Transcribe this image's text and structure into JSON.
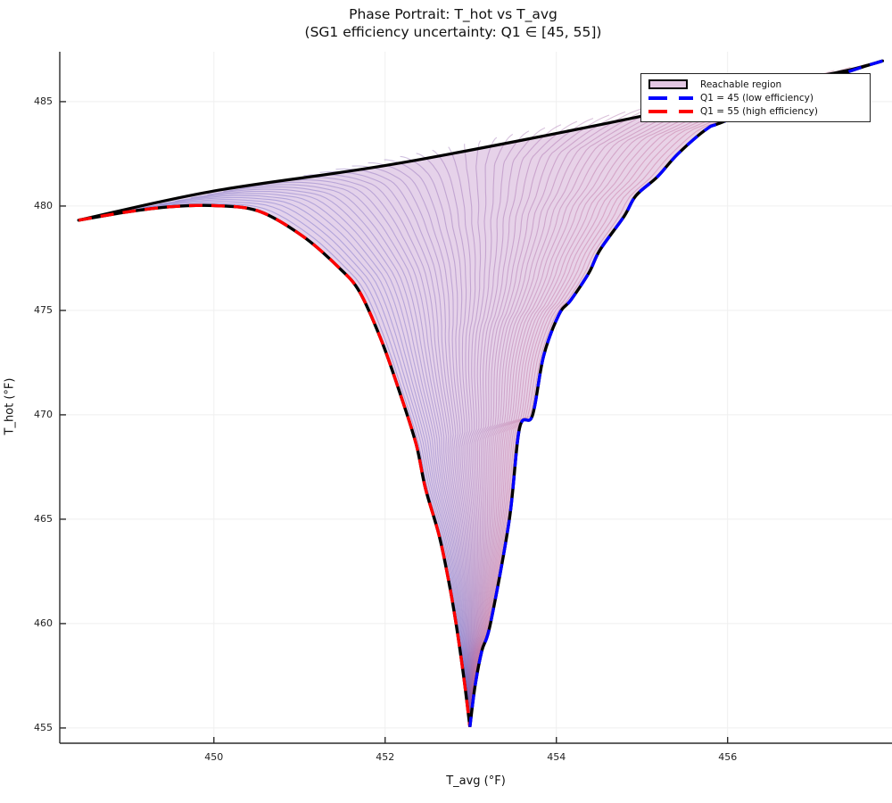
{
  "title": {
    "line1": "Phase Portrait: T_hot vs T_avg",
    "line2": "(SG1 efficiency uncertainty: Q1 ∈ [45, 55])"
  },
  "axes": {
    "xlabel": "T_avg (°F)",
    "ylabel": "T_hot (°F)"
  },
  "legend": {
    "items": [
      {
        "label": "Reachable region",
        "type": "patch",
        "fill": "#e3c7e3",
        "border": "#000000"
      },
      {
        "label": "Q1 = 45 (low efficiency)",
        "type": "dashed-line",
        "color": "#0000ff"
      },
      {
        "label": "Q1 = 55 (high efficiency)",
        "type": "dashed-line",
        "color": "#ff0000"
      }
    ]
  },
  "chart_data": {
    "type": "area",
    "title": "Phase Portrait: T_hot vs T_avg",
    "subtitle": "(SG1 efficiency uncertainty: Q1 ∈ [45, 55])",
    "xlabel": "T_avg (°F)",
    "ylabel": "T_hot (°F)",
    "xlim": [
      448.2,
      457.92
    ],
    "ylim": [
      454.27,
      487.39
    ],
    "x_ticks": [
      450,
      452,
      454,
      456
    ],
    "y_ticks": [
      455,
      460,
      465,
      470,
      475,
      480,
      485
    ],
    "grid": true,
    "legend_position": "top-right",
    "region": {
      "label": "Reachable region",
      "fill_left": "#e0d2ee",
      "fill_right": "#ecd2e4",
      "cusp": [
        453.0,
        455.0
      ],
      "fan": {
        "count": 50,
        "color_start": "#5a5ac4",
        "color_end": "#c45f8c",
        "opacity": 0.38
      }
    },
    "series": [
      {
        "name": "Reachable region (top boundary)",
        "role": "top_boundary",
        "color": "#000000",
        "style": "solid",
        "width": 3.2,
        "points": [
          [
            448.42,
            479.32
          ],
          [
            450.0,
            480.72
          ],
          [
            452.16,
            482.05
          ],
          [
            454.99,
            484.3
          ],
          [
            456.56,
            485.8
          ],
          [
            457.4,
            486.5
          ],
          [
            457.81,
            486.95
          ]
        ]
      },
      {
        "name": "Q1 = 45 (low efficiency)",
        "role": "right_boundary",
        "color": "#0000ff",
        "style": "dashed",
        "width": 3.4,
        "points": [
          [
            457.81,
            486.95
          ],
          [
            457.29,
            486.25
          ],
          [
            455.99,
            484.1
          ],
          [
            455.76,
            483.7
          ],
          [
            455.42,
            482.5
          ],
          [
            455.18,
            481.4
          ],
          [
            454.93,
            480.5
          ],
          [
            454.79,
            479.5
          ],
          [
            454.51,
            477.9
          ],
          [
            454.38,
            476.8
          ],
          [
            454.17,
            475.5
          ],
          [
            454.03,
            474.8
          ],
          [
            453.85,
            472.8
          ],
          [
            453.72,
            469.96
          ],
          [
            453.57,
            469.36
          ],
          [
            453.45,
            464.96
          ],
          [
            453.23,
            460.0
          ],
          [
            453.13,
            458.7
          ],
          [
            453.05,
            457.0
          ],
          [
            452.99,
            455.05
          ]
        ]
      },
      {
        "name": "Q1 = 55 (high efficiency)",
        "role": "left_boundary",
        "color": "#ff0000",
        "style": "dashed",
        "width": 3.4,
        "points": [
          [
            448.42,
            479.32
          ],
          [
            448.96,
            479.7
          ],
          [
            449.48,
            479.96
          ],
          [
            450.0,
            480.02
          ],
          [
            450.52,
            479.76
          ],
          [
            451.04,
            478.55
          ],
          [
            451.46,
            477.05
          ],
          [
            451.7,
            475.9
          ],
          [
            451.95,
            473.63
          ],
          [
            452.16,
            471.2
          ],
          [
            452.36,
            468.63
          ],
          [
            452.47,
            466.49
          ],
          [
            452.63,
            464.23
          ],
          [
            452.74,
            462.09
          ],
          [
            452.83,
            459.96
          ],
          [
            452.92,
            457.39
          ],
          [
            452.99,
            455.05
          ]
        ]
      }
    ]
  }
}
